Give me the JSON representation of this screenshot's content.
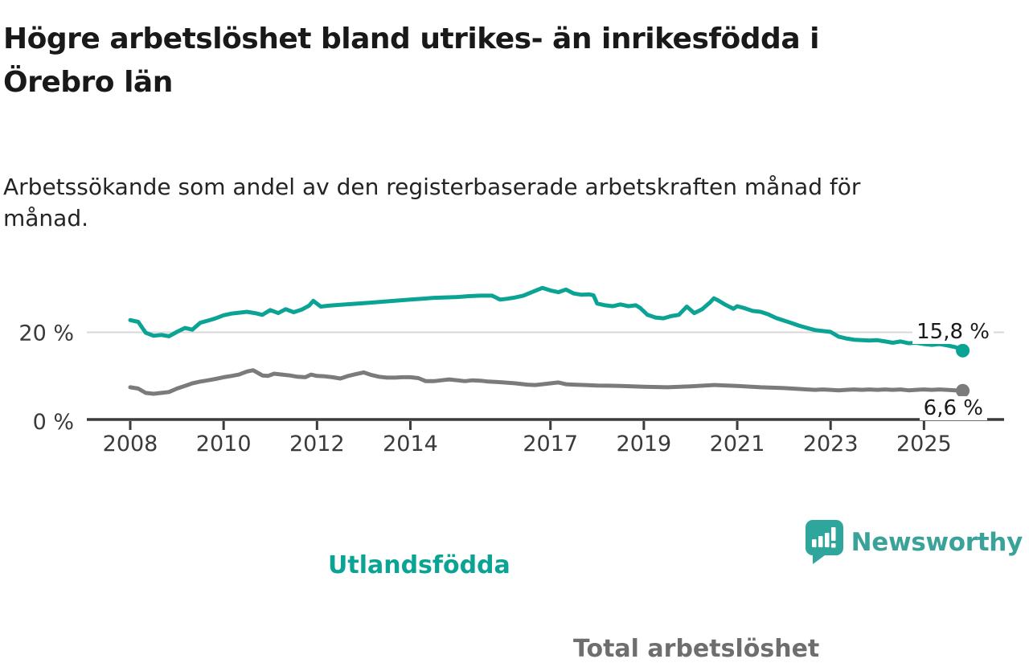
{
  "title_lines": [
    "Högre arbetslöshet bland utrikes- än inrikesfödda i",
    "Örebro län"
  ],
  "subtitle_lines": [
    "Arbetssökande som andel av den registerbaserade arbetskraften månad för",
    "månad."
  ],
  "colors": {
    "foreign_born_line": "#0ba394",
    "total_line": "#7b7b7b",
    "axis": "#3b3b3b",
    "gridline": "#d8d8d8",
    "title_text": "#191919",
    "brand_teal": "#3ba29a",
    "brand_icon_teal": "#2fa69c"
  },
  "branding": {
    "logo_text": "Newsworthy",
    "logo_icon": "bar-chart-speech-bubble-icon"
  },
  "chart_data": {
    "type": "line",
    "title": "Högre arbetslöshet bland utrikes- än inrikesfödda i Örebro län",
    "subtitle": "Arbetssökande som andel av den registerbaserade arbetskraften månad för månad.",
    "xlabel": "",
    "ylabel": "",
    "xlim": [
      2007.07,
      2026.7
    ],
    "ylim": [
      0,
      35.4
    ],
    "grid": "horizontal line at 20% only",
    "legend_position": "inline labels on lines",
    "x_ticks": [
      "2008",
      "2010",
      "2012",
      "2014",
      "2017",
      "2019",
      "2021",
      "2023",
      "2025"
    ],
    "x_tick_years": [
      2008,
      2010,
      2012,
      2014,
      2017,
      2019,
      2021,
      2023,
      2025
    ],
    "y_ticks": [
      {
        "value": 0,
        "label": "0 %"
      },
      {
        "value": 20,
        "label": "20 %"
      }
    ],
    "series": [
      {
        "name": "Utlandsfödda",
        "color": "#0ba394",
        "end_label": "15,8 %",
        "end_value": 15.8,
        "points": [
          [
            2008.0,
            22.8
          ],
          [
            2008.17,
            22.4
          ],
          [
            2008.33,
            19.9
          ],
          [
            2008.5,
            19.2
          ],
          [
            2008.67,
            19.4
          ],
          [
            2008.83,
            19.1
          ],
          [
            2009.0,
            20.1
          ],
          [
            2009.17,
            21.0
          ],
          [
            2009.33,
            20.6
          ],
          [
            2009.5,
            22.2
          ],
          [
            2009.67,
            22.7
          ],
          [
            2009.83,
            23.2
          ],
          [
            2010.0,
            23.9
          ],
          [
            2010.17,
            24.3
          ],
          [
            2010.33,
            24.5
          ],
          [
            2010.5,
            24.7
          ],
          [
            2010.67,
            24.4
          ],
          [
            2010.83,
            24.0
          ],
          [
            2011.0,
            25.1
          ],
          [
            2011.17,
            24.4
          ],
          [
            2011.33,
            25.3
          ],
          [
            2011.5,
            24.6
          ],
          [
            2011.67,
            25.2
          ],
          [
            2011.83,
            26.1
          ],
          [
            2011.92,
            27.2
          ],
          [
            2012.08,
            25.9
          ],
          [
            2012.25,
            26.1
          ],
          [
            2012.5,
            26.3
          ],
          [
            2012.75,
            26.5
          ],
          [
            2013.0,
            26.7
          ],
          [
            2013.25,
            26.9
          ],
          [
            2013.5,
            27.1
          ],
          [
            2013.75,
            27.3
          ],
          [
            2014.0,
            27.5
          ],
          [
            2014.25,
            27.7
          ],
          [
            2014.5,
            27.9
          ],
          [
            2014.75,
            28.0
          ],
          [
            2015.0,
            28.1
          ],
          [
            2015.25,
            28.3
          ],
          [
            2015.5,
            28.4
          ],
          [
            2015.75,
            28.4
          ],
          [
            2015.92,
            27.5
          ],
          [
            2016.08,
            27.7
          ],
          [
            2016.25,
            28.0
          ],
          [
            2016.42,
            28.4
          ],
          [
            2016.58,
            29.1
          ],
          [
            2016.83,
            30.2
          ],
          [
            2017.0,
            29.6
          ],
          [
            2017.17,
            29.2
          ],
          [
            2017.33,
            29.8
          ],
          [
            2017.5,
            28.9
          ],
          [
            2017.67,
            28.6
          ],
          [
            2017.83,
            28.7
          ],
          [
            2017.92,
            28.5
          ],
          [
            2018.0,
            26.6
          ],
          [
            2018.17,
            26.2
          ],
          [
            2018.33,
            26.0
          ],
          [
            2018.5,
            26.4
          ],
          [
            2018.67,
            26.0
          ],
          [
            2018.83,
            26.2
          ],
          [
            2018.92,
            25.6
          ],
          [
            2019.08,
            24.0
          ],
          [
            2019.25,
            23.4
          ],
          [
            2019.42,
            23.2
          ],
          [
            2019.58,
            23.7
          ],
          [
            2019.75,
            24.0
          ],
          [
            2019.92,
            25.9
          ],
          [
            2020.08,
            24.4
          ],
          [
            2020.25,
            25.3
          ],
          [
            2020.42,
            26.9
          ],
          [
            2020.5,
            27.8
          ],
          [
            2020.58,
            27.4
          ],
          [
            2020.75,
            26.3
          ],
          [
            2020.92,
            25.4
          ],
          [
            2021.0,
            26.0
          ],
          [
            2021.17,
            25.5
          ],
          [
            2021.33,
            24.9
          ],
          [
            2021.5,
            24.7
          ],
          [
            2021.67,
            24.1
          ],
          [
            2021.83,
            23.3
          ],
          [
            2022.0,
            22.7
          ],
          [
            2022.17,
            22.1
          ],
          [
            2022.33,
            21.5
          ],
          [
            2022.5,
            21.0
          ],
          [
            2022.67,
            20.5
          ],
          [
            2022.83,
            20.3
          ],
          [
            2023.0,
            20.1
          ],
          [
            2023.17,
            19.0
          ],
          [
            2023.33,
            18.6
          ],
          [
            2023.5,
            18.3
          ],
          [
            2023.67,
            18.2
          ],
          [
            2023.83,
            18.1
          ],
          [
            2024.0,
            18.2
          ],
          [
            2024.17,
            17.9
          ],
          [
            2024.33,
            17.6
          ],
          [
            2024.5,
            17.9
          ],
          [
            2024.67,
            17.5
          ],
          [
            2024.83,
            17.6
          ],
          [
            2025.0,
            17.3
          ],
          [
            2025.17,
            17.1
          ],
          [
            2025.33,
            17.3
          ],
          [
            2025.5,
            17.0
          ],
          [
            2025.67,
            16.6
          ],
          [
            2025.83,
            15.8
          ]
        ]
      },
      {
        "name": "Total arbetslöshet",
        "color": "#7b7b7b",
        "end_label": "6,6 %",
        "end_value": 6.6,
        "points": [
          [
            2008.0,
            7.4
          ],
          [
            2008.17,
            7.1
          ],
          [
            2008.33,
            6.1
          ],
          [
            2008.5,
            5.9
          ],
          [
            2008.67,
            6.1
          ],
          [
            2008.83,
            6.3
          ],
          [
            2009.0,
            7.1
          ],
          [
            2009.17,
            7.7
          ],
          [
            2009.33,
            8.3
          ],
          [
            2009.5,
            8.7
          ],
          [
            2009.67,
            9.0
          ],
          [
            2009.83,
            9.3
          ],
          [
            2010.0,
            9.7
          ],
          [
            2010.17,
            10.0
          ],
          [
            2010.33,
            10.3
          ],
          [
            2010.5,
            11.0
          ],
          [
            2010.63,
            11.3
          ],
          [
            2010.75,
            10.6
          ],
          [
            2010.83,
            10.1
          ],
          [
            2010.95,
            10.0
          ],
          [
            2011.08,
            10.5
          ],
          [
            2011.25,
            10.3
          ],
          [
            2011.42,
            10.1
          ],
          [
            2011.58,
            9.8
          ],
          [
            2011.75,
            9.7
          ],
          [
            2011.87,
            10.3
          ],
          [
            2012.0,
            10.0
          ],
          [
            2012.17,
            9.9
          ],
          [
            2012.33,
            9.7
          ],
          [
            2012.5,
            9.4
          ],
          [
            2012.67,
            10.0
          ],
          [
            2012.83,
            10.4
          ],
          [
            2013.0,
            10.8
          ],
          [
            2013.17,
            10.2
          ],
          [
            2013.33,
            9.8
          ],
          [
            2013.5,
            9.6
          ],
          [
            2013.67,
            9.6
          ],
          [
            2013.83,
            9.7
          ],
          [
            2014.0,
            9.7
          ],
          [
            2014.17,
            9.5
          ],
          [
            2014.33,
            8.8
          ],
          [
            2014.5,
            8.8
          ],
          [
            2014.67,
            9.0
          ],
          [
            2014.83,
            9.2
          ],
          [
            2015.0,
            9.0
          ],
          [
            2015.17,
            8.8
          ],
          [
            2015.33,
            9.0
          ],
          [
            2015.5,
            8.9
          ],
          [
            2015.67,
            8.7
          ],
          [
            2015.83,
            8.6
          ],
          [
            2016.0,
            8.5
          ],
          [
            2016.25,
            8.3
          ],
          [
            2016.5,
            8.0
          ],
          [
            2016.67,
            7.9
          ],
          [
            2016.83,
            8.1
          ],
          [
            2017.0,
            8.3
          ],
          [
            2017.17,
            8.5
          ],
          [
            2017.33,
            8.1
          ],
          [
            2017.5,
            8.0
          ],
          [
            2017.75,
            7.9
          ],
          [
            2018.0,
            7.8
          ],
          [
            2018.5,
            7.7
          ],
          [
            2019.0,
            7.5
          ],
          [
            2019.5,
            7.4
          ],
          [
            2020.0,
            7.6
          ],
          [
            2020.5,
            7.9
          ],
          [
            2021.0,
            7.7
          ],
          [
            2021.5,
            7.4
          ],
          [
            2022.0,
            7.2
          ],
          [
            2022.33,
            7.0
          ],
          [
            2022.5,
            6.9
          ],
          [
            2022.67,
            6.8
          ],
          [
            2022.83,
            6.9
          ],
          [
            2023.0,
            6.8
          ],
          [
            2023.17,
            6.7
          ],
          [
            2023.33,
            6.8
          ],
          [
            2023.5,
            6.9
          ],
          [
            2023.67,
            6.8
          ],
          [
            2023.83,
            6.9
          ],
          [
            2024.0,
            6.8
          ],
          [
            2024.17,
            6.9
          ],
          [
            2024.33,
            6.8
          ],
          [
            2024.5,
            6.9
          ],
          [
            2024.67,
            6.7
          ],
          [
            2024.83,
            6.8
          ],
          [
            2025.0,
            6.9
          ],
          [
            2025.17,
            6.8
          ],
          [
            2025.33,
            6.9
          ],
          [
            2025.5,
            6.8
          ],
          [
            2025.67,
            6.7
          ],
          [
            2025.83,
            6.6
          ]
        ]
      }
    ]
  }
}
